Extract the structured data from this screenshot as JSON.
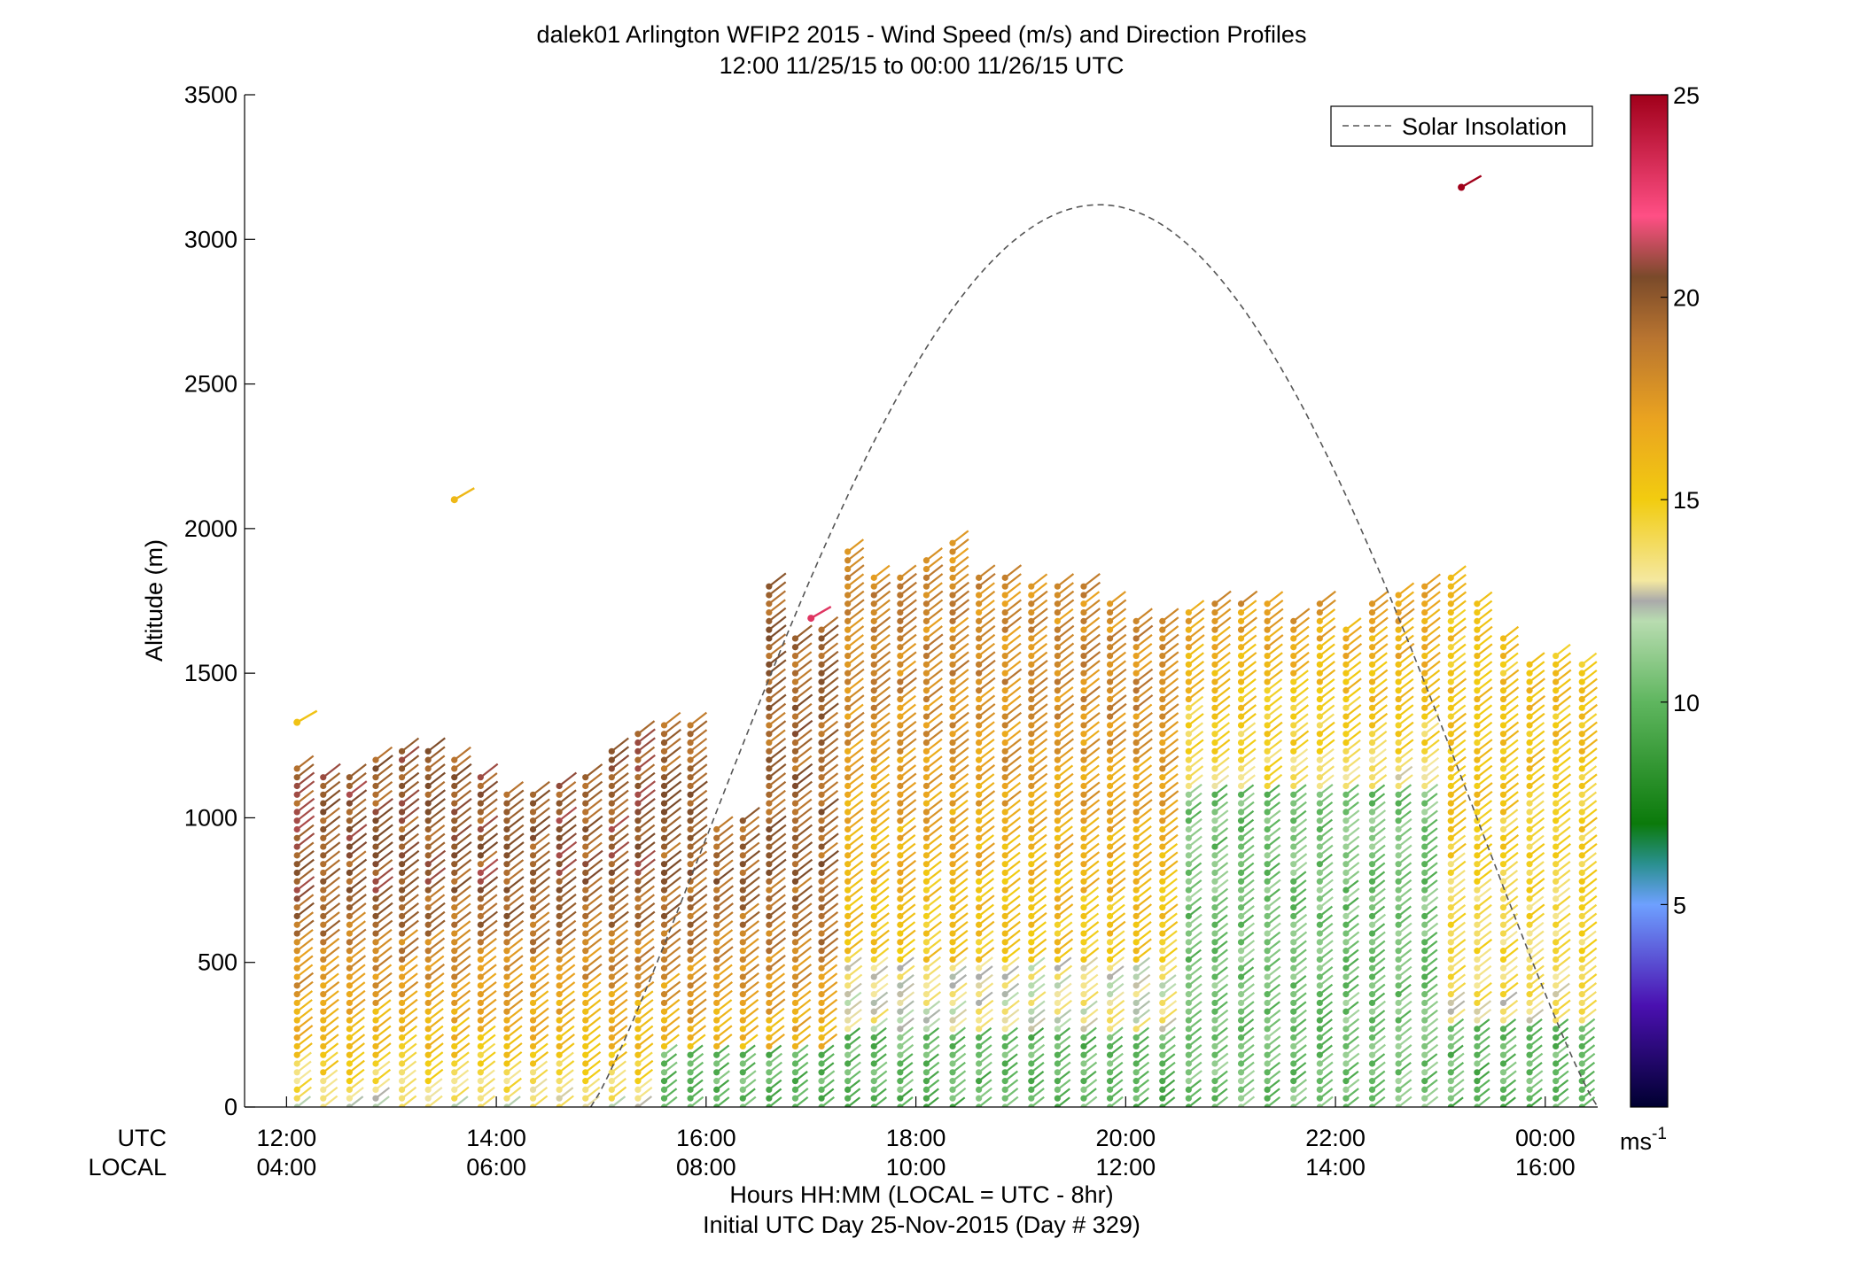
{
  "chart_data": {
    "type": "wind-barb-profile",
    "title": "dalek01 Arlington WFIP2 2015 - Wind Speed (m/s) and Direction Profiles",
    "subtitle": "12:00 11/25/15 to 00:00 11/26/15  UTC",
    "ylabel": "Altitude (m)",
    "xlabel": "Hours HH:MM  (LOCAL = UTC - 8hr)",
    "xlabel2": "Initial UTC Day 25-Nov-2015 (Day # 329)",
    "row_label_utc": "UTC",
    "row_label_local": "LOCAL",
    "ylim": [
      0,
      3500
    ],
    "yticks": [
      "0",
      "500",
      "1000",
      "1500",
      "2000",
      "2500",
      "3000",
      "3500"
    ],
    "xlim_hours": [
      11.6,
      24.5
    ],
    "xticks_hours": [
      12,
      14,
      16,
      18,
      20,
      22,
      24
    ],
    "xtick_labels_utc": [
      "12:00",
      "14:00",
      "16:00",
      "18:00",
      "20:00",
      "22:00",
      "00:00"
    ],
    "xtick_labels_local": [
      "04:00",
      "06:00",
      "08:00",
      "10:00",
      "12:00",
      "14:00",
      "16:00"
    ],
    "colorbar": {
      "range": [
        0,
        25
      ],
      "ticks": [
        "5",
        "10",
        "15",
        "20",
        "25"
      ],
      "unit": "ms",
      "unit_exp": "-1"
    },
    "legend": {
      "label": "Solar Insolation",
      "position": "top-right"
    },
    "solar_insolation": {
      "start_hour": 14.9,
      "peak_hour": 19.75,
      "end_hour": 24.5,
      "peak_altitude": 3120
    },
    "profiles": {
      "start_hour": 12.1,
      "step_hour": 0.25,
      "count": 50,
      "level_step_m": 30,
      "tops_m": [
        1170,
        1140,
        1150,
        1200,
        1230,
        1250,
        1200,
        1150,
        1100,
        1100,
        1110,
        1150,
        1250,
        1300,
        1330,
        1320,
        960,
        1000,
        1800,
        1640,
        1650,
        1930,
        1840,
        1840,
        1900,
        1950,
        1850,
        1830,
        1800,
        1800,
        1800,
        1740,
        1690,
        1700,
        1720,
        1740,
        1750,
        1760,
        1700,
        1750,
        1660,
        1760,
        1790,
        1820,
        1850,
        1760,
        1620,
        1540,
        1560,
        1550
      ],
      "sample_barbs": [
        {
          "hour": 12.1,
          "altitude": 1330,
          "speed": 15.5
        },
        {
          "hour": 13.6,
          "altitude": 2100,
          "speed": 16
        },
        {
          "hour": 17.0,
          "altitude": 1690,
          "speed": 23
        },
        {
          "hour": 23.2,
          "altitude": 3180,
          "speed": 25
        }
      ]
    }
  }
}
